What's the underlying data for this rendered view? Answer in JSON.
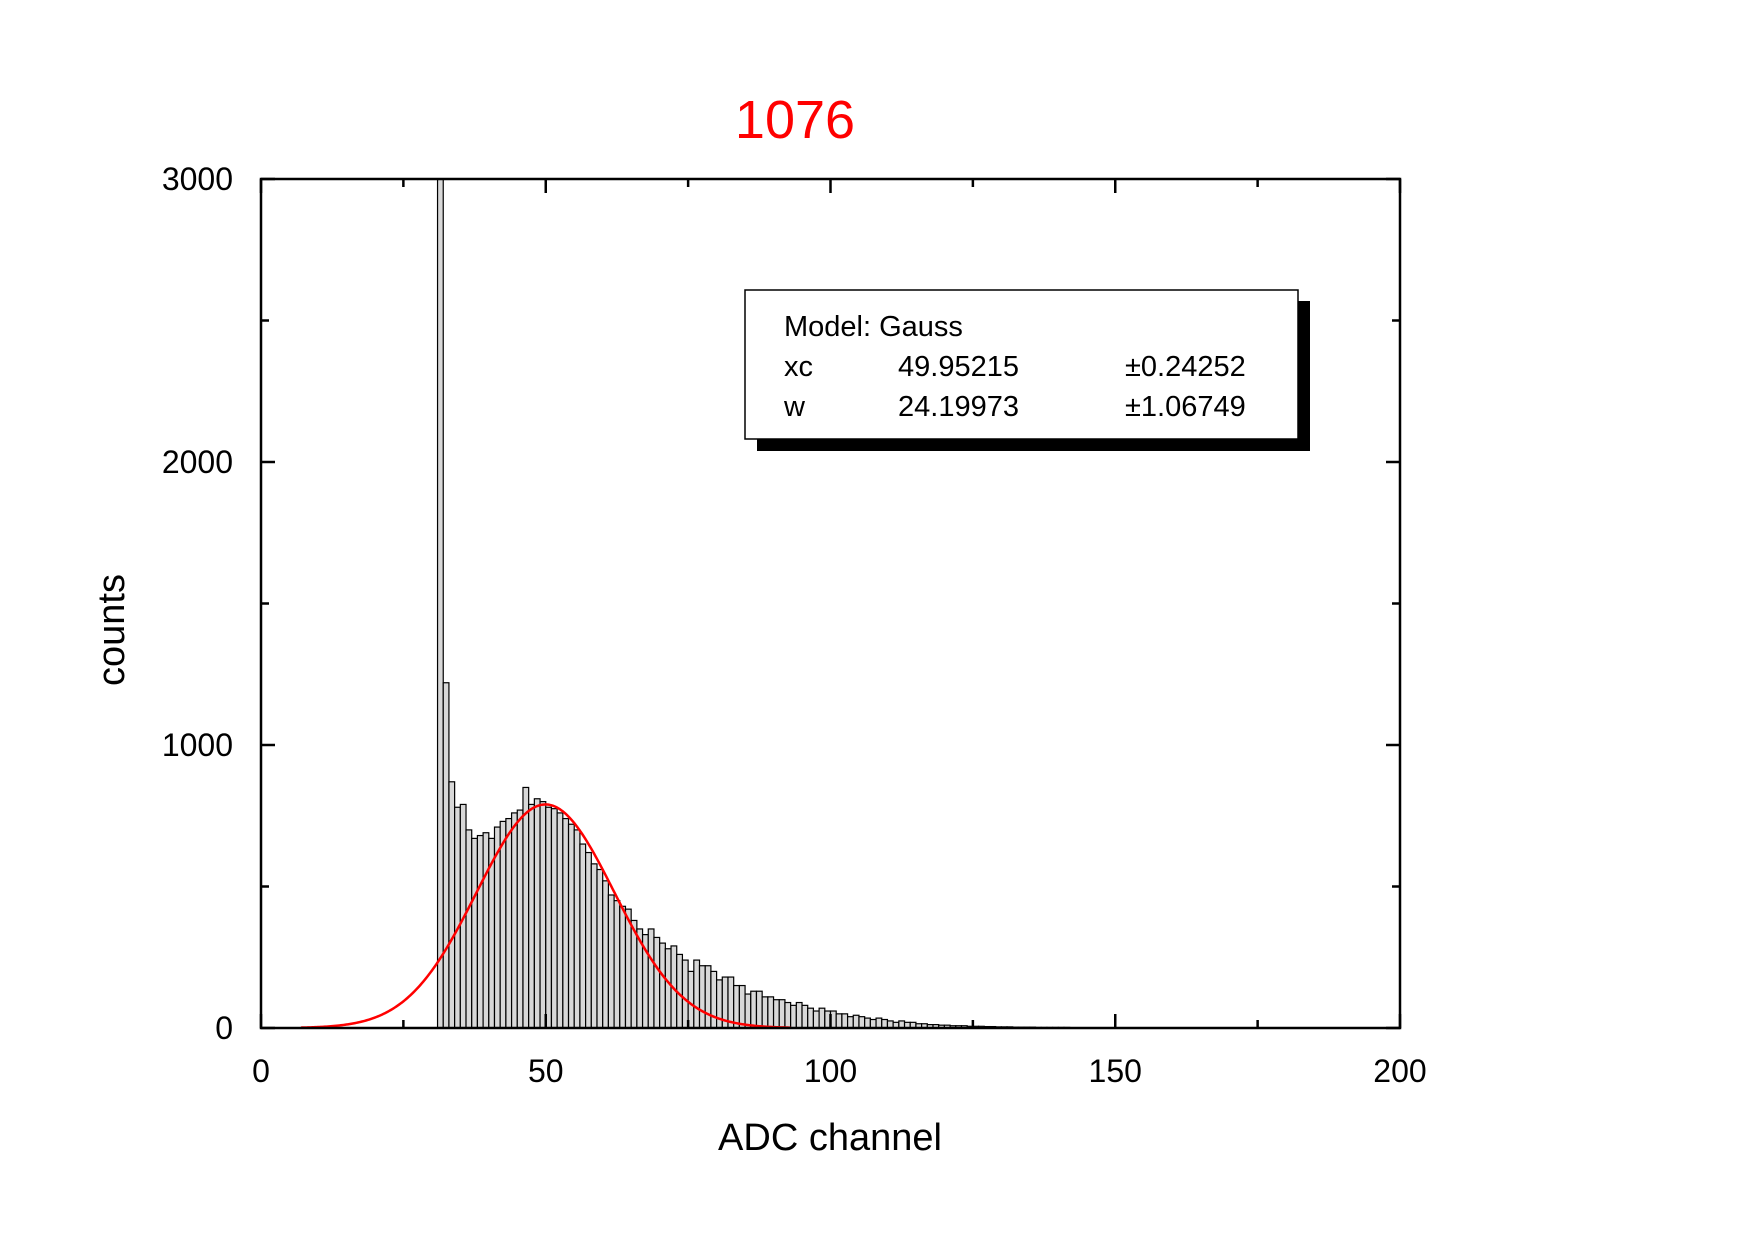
{
  "chart_data": {
    "type": "bar",
    "title": "1076",
    "xlabel": "ADC channel",
    "ylabel": "counts",
    "xlim": [
      0,
      200
    ],
    "ylim": [
      0,
      3000
    ],
    "x_ticks": [
      0,
      50,
      100,
      150,
      200
    ],
    "y_ticks": [
      0,
      1000,
      2000,
      3000
    ],
    "grid": false,
    "colors": {
      "title": "#ff0000",
      "bar_fill": "#d8d8d8",
      "bar_stroke": "#000000",
      "fit_curve": "#ff0000",
      "axes": "#000000"
    },
    "bin_width": 1,
    "histogram": {
      "name": "counts",
      "x": [
        31,
        32,
        33,
        34,
        35,
        36,
        37,
        38,
        39,
        40,
        41,
        42,
        43,
        44,
        45,
        46,
        47,
        48,
        49,
        50,
        51,
        52,
        53,
        54,
        55,
        56,
        57,
        58,
        59,
        60,
        61,
        62,
        63,
        64,
        65,
        66,
        67,
        68,
        69,
        70,
        71,
        72,
        73,
        74,
        75,
        76,
        77,
        78,
        79,
        80,
        81,
        82,
        83,
        84,
        85,
        86,
        87,
        88,
        89,
        90,
        91,
        92,
        93,
        94,
        95,
        96,
        97,
        98,
        99,
        100,
        101,
        102,
        103,
        104,
        105,
        106,
        107,
        108,
        109,
        110,
        111,
        112,
        113,
        114,
        115,
        116,
        117,
        118,
        119,
        120,
        121,
        122,
        123,
        124,
        125,
        126,
        127,
        128,
        129,
        130,
        131,
        132,
        133,
        134,
        135,
        136,
        137,
        138,
        139,
        140,
        141,
        142,
        143,
        144,
        145,
        146,
        147,
        148,
        149,
        150,
        151,
        152,
        153,
        154,
        155,
        156,
        157,
        158,
        159,
        160,
        161,
        162
      ],
      "values": [
        3000,
        1220,
        870,
        780,
        790,
        700,
        670,
        680,
        690,
        670,
        710,
        730,
        740,
        760,
        770,
        850,
        790,
        810,
        800,
        780,
        775,
        760,
        740,
        720,
        700,
        650,
        620,
        580,
        560,
        520,
        470,
        450,
        430,
        420,
        380,
        350,
        330,
        350,
        320,
        300,
        280,
        290,
        260,
        240,
        200,
        240,
        220,
        220,
        200,
        170,
        180,
        180,
        150,
        150,
        120,
        130,
        130,
        110,
        110,
        100,
        100,
        90,
        80,
        90,
        80,
        70,
        60,
        70,
        60,
        60,
        50,
        50,
        40,
        45,
        40,
        35,
        30,
        35,
        30,
        25,
        20,
        25,
        20,
        20,
        15,
        15,
        12,
        12,
        10,
        10,
        8,
        8,
        8,
        6,
        6,
        6,
        5,
        5,
        4,
        4,
        4,
        3,
        3,
        3,
        3,
        2,
        2,
        2,
        2,
        2,
        2,
        1,
        1,
        1,
        1,
        1,
        1,
        1,
        1,
        1,
        1,
        1,
        1,
        1,
        1,
        1,
        1,
        1,
        1,
        1,
        1,
        1
      ]
    },
    "fit": {
      "model": "Gauss",
      "xc": 49.95215,
      "w": 24.19973,
      "peak": 790,
      "x_range": [
        7,
        93
      ]
    },
    "fit_box": {
      "model_line": "Model: Gauss",
      "rows": [
        {
          "param": "xc",
          "value": "49.95215",
          "error": "±0.24252"
        },
        {
          "param": "w",
          "value": "24.19973",
          "error": "±1.06749"
        }
      ]
    }
  }
}
